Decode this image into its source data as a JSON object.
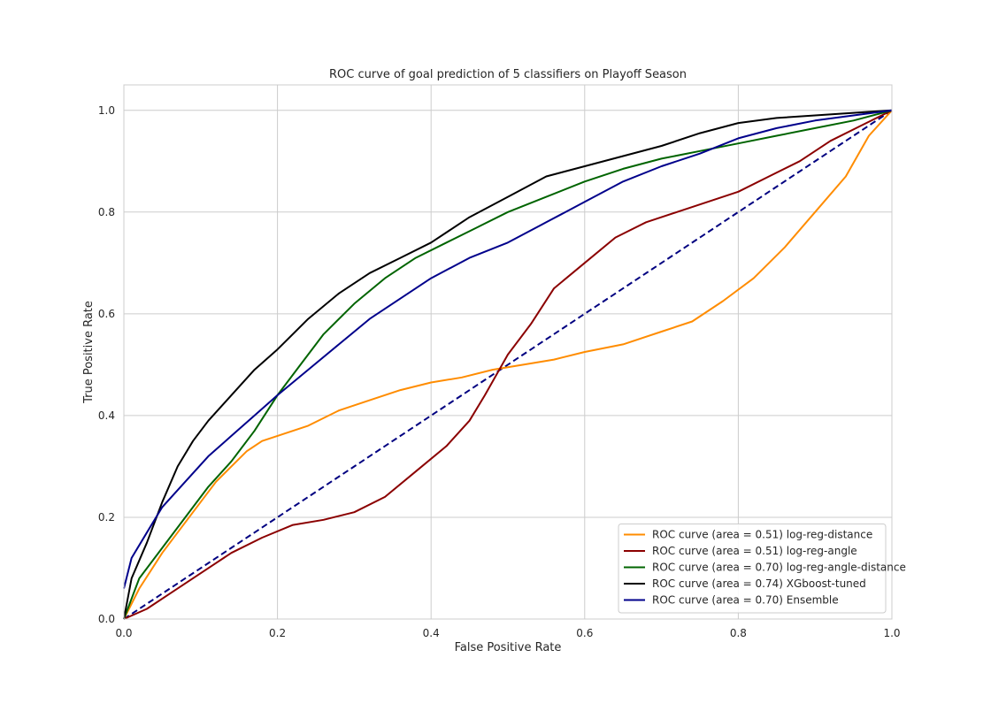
{
  "chart_data": {
    "type": "line",
    "title": "ROC curve of goal prediction of 5 classifiers on Playoff Season",
    "xlabel": "False Positive Rate",
    "ylabel": "True Positive Rate",
    "xlim": [
      0.0,
      1.0
    ],
    "ylim": [
      0.0,
      1.05
    ],
    "grid": true,
    "legend_position": "lower-right",
    "xticks": [
      0.0,
      0.2,
      0.4,
      0.6,
      0.8,
      1.0
    ],
    "xtick_labels": [
      "0.0",
      "0.2",
      "0.4",
      "0.6",
      "0.8",
      "1.0"
    ],
    "yticks": [
      0.0,
      0.2,
      0.4,
      0.6,
      0.8,
      1.0
    ],
    "ytick_labels": [
      "0.0",
      "0.2",
      "0.4",
      "0.6",
      "0.8",
      "1.0"
    ],
    "series": [
      {
        "name": "ROC curve (area = 0.51) log-reg-distance",
        "color": "#ff8c00",
        "x": [
          0,
          0.02,
          0.05,
          0.08,
          0.1,
          0.12,
          0.14,
          0.16,
          0.18,
          0.2,
          0.24,
          0.28,
          0.32,
          0.36,
          0.4,
          0.44,
          0.48,
          0.52,
          0.56,
          0.6,
          0.65,
          0.7,
          0.74,
          0.78,
          0.82,
          0.86,
          0.9,
          0.94,
          0.97,
          1.0
        ],
        "y": [
          0,
          0.06,
          0.13,
          0.19,
          0.23,
          0.27,
          0.3,
          0.33,
          0.35,
          0.36,
          0.38,
          0.41,
          0.43,
          0.45,
          0.465,
          0.475,
          0.49,
          0.5,
          0.51,
          0.525,
          0.54,
          0.565,
          0.585,
          0.625,
          0.67,
          0.73,
          0.8,
          0.87,
          0.95,
          1.0
        ]
      },
      {
        "name": "ROC curve (area = 0.51) log-reg-angle",
        "color": "#8b0000",
        "x": [
          0,
          0.03,
          0.06,
          0.1,
          0.14,
          0.18,
          0.22,
          0.26,
          0.3,
          0.34,
          0.38,
          0.42,
          0.45,
          0.47,
          0.5,
          0.53,
          0.56,
          0.6,
          0.64,
          0.68,
          0.72,
          0.76,
          0.8,
          0.84,
          0.88,
          0.92,
          0.96,
          1.0
        ],
        "y": [
          0,
          0.02,
          0.05,
          0.09,
          0.13,
          0.16,
          0.185,
          0.195,
          0.21,
          0.24,
          0.29,
          0.34,
          0.39,
          0.44,
          0.52,
          0.58,
          0.65,
          0.7,
          0.75,
          0.78,
          0.8,
          0.82,
          0.84,
          0.87,
          0.9,
          0.94,
          0.97,
          1.0
        ]
      },
      {
        "name": "ROC curve (area = 0.70) log-reg-angle-distance",
        "color": "#006400",
        "x": [
          0,
          0.02,
          0.05,
          0.08,
          0.11,
          0.14,
          0.17,
          0.2,
          0.23,
          0.26,
          0.3,
          0.34,
          0.38,
          0.42,
          0.46,
          0.5,
          0.55,
          0.6,
          0.65,
          0.7,
          0.75,
          0.8,
          0.85,
          0.9,
          0.95,
          1.0
        ],
        "y": [
          0,
          0.08,
          0.14,
          0.2,
          0.26,
          0.31,
          0.37,
          0.44,
          0.5,
          0.56,
          0.62,
          0.67,
          0.71,
          0.74,
          0.77,
          0.8,
          0.83,
          0.86,
          0.885,
          0.905,
          0.92,
          0.935,
          0.95,
          0.965,
          0.98,
          1.0
        ]
      },
      {
        "name": "ROC curve (area = 0.74) XGboost-tuned",
        "color": "#000000",
        "x": [
          0,
          0.01,
          0.03,
          0.05,
          0.07,
          0.09,
          0.11,
          0.14,
          0.17,
          0.2,
          0.24,
          0.28,
          0.32,
          0.36,
          0.4,
          0.45,
          0.5,
          0.55,
          0.6,
          0.65,
          0.7,
          0.75,
          0.8,
          0.85,
          0.9,
          0.95,
          1.0
        ],
        "y": [
          0,
          0.08,
          0.15,
          0.23,
          0.3,
          0.35,
          0.39,
          0.44,
          0.49,
          0.53,
          0.59,
          0.64,
          0.68,
          0.71,
          0.74,
          0.79,
          0.83,
          0.87,
          0.89,
          0.91,
          0.93,
          0.955,
          0.975,
          0.985,
          0.99,
          0.995,
          1.0
        ]
      },
      {
        "name": "ROC curve (area = 0.70) Ensemble",
        "color": "#00008b",
        "x": [
          0,
          0.01,
          0.03,
          0.05,
          0.08,
          0.11,
          0.14,
          0.17,
          0.2,
          0.24,
          0.28,
          0.32,
          0.36,
          0.4,
          0.45,
          0.5,
          0.55,
          0.6,
          0.65,
          0.7,
          0.75,
          0.8,
          0.85,
          0.9,
          0.95,
          1.0
        ],
        "y": [
          0.06,
          0.12,
          0.17,
          0.22,
          0.27,
          0.32,
          0.36,
          0.4,
          0.44,
          0.49,
          0.54,
          0.59,
          0.63,
          0.67,
          0.71,
          0.74,
          0.78,
          0.82,
          0.86,
          0.89,
          0.915,
          0.945,
          0.965,
          0.98,
          0.99,
          1.0
        ]
      }
    ],
    "reference_line": {
      "name": "chance",
      "color": "#000080",
      "style": "dashed",
      "x": [
        0,
        1
      ],
      "y": [
        0,
        1
      ]
    }
  }
}
